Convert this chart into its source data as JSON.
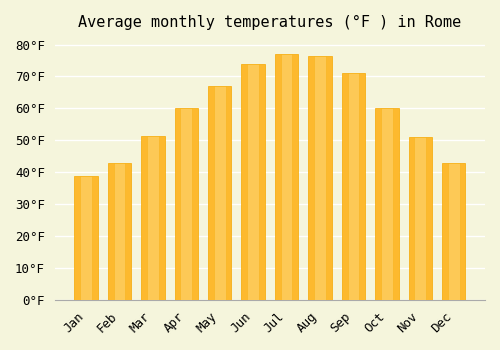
{
  "title": "Average monthly temperatures (°F ) in Rome",
  "months": [
    "Jan",
    "Feb",
    "Mar",
    "Apr",
    "May",
    "Jun",
    "Jul",
    "Aug",
    "Sep",
    "Oct",
    "Nov",
    "Dec"
  ],
  "values": [
    39,
    43,
    51.5,
    60,
    67,
    74,
    77,
    76.5,
    71,
    60,
    51,
    43
  ],
  "bar_color": "#FDB92E",
  "bar_edge_color": "#F5A800",
  "background_color": "#F5F5DC",
  "grid_color": "#FFFFFF",
  "ylim": [
    0,
    82
  ],
  "yticks": [
    0,
    10,
    20,
    30,
    40,
    50,
    60,
    70,
    80
  ],
  "title_fontsize": 11,
  "tick_fontsize": 9,
  "font_family": "monospace"
}
